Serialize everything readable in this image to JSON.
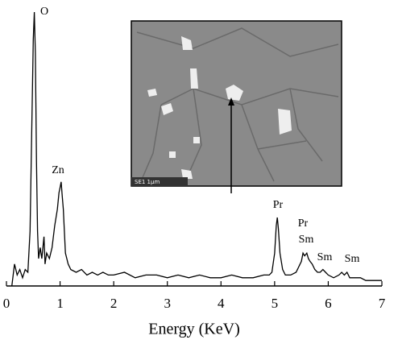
{
  "chart_data": {
    "type": "line",
    "x_label": "Energy (KeV)",
    "xlim": [
      0,
      7
    ],
    "xticks": [
      0,
      1,
      2,
      3,
      4,
      5,
      6,
      7
    ],
    "ylim": [
      0,
      100
    ],
    "annotations": [
      "O",
      "Zn",
      "Pr",
      "Pr",
      "Sm",
      "Sm",
      "Sm"
    ],
    "inset_label": "SE1  1μm",
    "x": [
      0.1,
      0.15,
      0.2,
      0.25,
      0.3,
      0.35,
      0.4,
      0.44,
      0.47,
      0.5,
      0.52,
      0.54,
      0.56,
      0.58,
      0.6,
      0.63,
      0.66,
      0.7,
      0.72,
      0.75,
      0.8,
      0.85,
      0.9,
      0.95,
      0.98,
      1.0,
      1.02,
      1.04,
      1.06,
      1.08,
      1.1,
      1.15,
      1.2,
      1.3,
      1.4,
      1.5,
      1.6,
      1.7,
      1.8,
      1.9,
      2.0,
      2.2,
      2.4,
      2.6,
      2.8,
      3.0,
      3.2,
      3.4,
      3.6,
      3.8,
      4.0,
      4.2,
      4.4,
      4.6,
      4.8,
      4.9,
      4.95,
      5.0,
      5.03,
      5.05,
      5.07,
      5.1,
      5.15,
      5.2,
      5.3,
      5.4,
      5.5,
      5.53,
      5.56,
      5.6,
      5.63,
      5.66,
      5.7,
      5.75,
      5.8,
      5.85,
      5.9,
      5.95,
      6.0,
      6.1,
      6.2,
      6.25,
      6.3,
      6.35,
      6.4,
      6.5,
      6.6,
      6.7,
      6.8,
      6.9,
      7.0
    ],
    "series": [
      {
        "color": "#000000",
        "values": [
          0,
          8,
          4,
          6,
          3,
          6,
          5,
          20,
          55,
          90,
          100,
          85,
          45,
          20,
          10,
          14,
          10,
          18,
          8,
          12,
          10,
          14,
          22,
          28,
          34,
          36,
          38,
          33,
          28,
          20,
          12,
          8,
          6,
          5,
          6,
          4,
          5,
          4,
          5,
          4,
          4,
          5,
          3,
          4,
          4,
          3,
          4,
          3,
          4,
          3,
          3,
          4,
          3,
          3,
          4,
          4,
          5,
          12,
          22,
          25,
          21,
          12,
          6,
          4,
          4,
          5,
          9,
          12,
          11,
          12,
          10,
          9,
          8,
          6,
          5,
          5,
          6,
          5,
          4,
          3,
          4,
          5,
          4,
          5,
          3,
          3,
          3,
          2,
          2,
          2,
          2
        ]
      }
    ]
  }
}
